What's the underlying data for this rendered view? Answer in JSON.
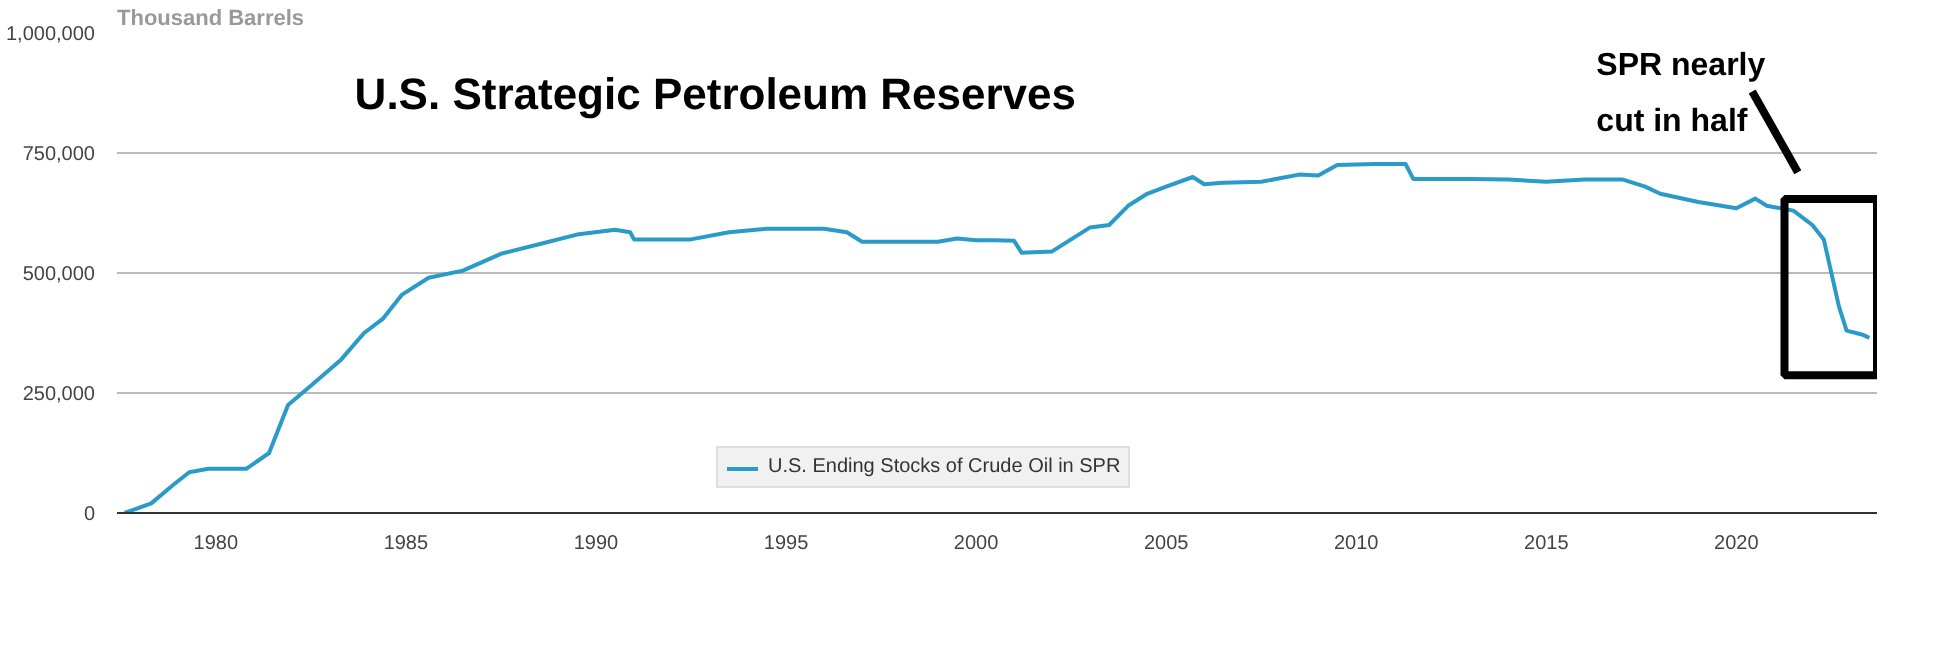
{
  "chart_data": {
    "type": "line",
    "title": "U.S. Strategic Petroleum Reserves",
    "ylabel": "Thousand Barrels",
    "annotations": [
      "SPR nearly cut in half"
    ],
    "xlim": [
      1977.4,
      2023.7
    ],
    "xticks": [
      1980,
      1985,
      1990,
      1995,
      2000,
      2005,
      2010,
      2015,
      2020
    ],
    "ylim": [
      0,
      1000000
    ],
    "yticks": [
      {
        "value": 0,
        "label": "0"
      },
      {
        "value": 250000,
        "label": "250,000"
      },
      {
        "value": 500000,
        "label": "500,000"
      },
      {
        "value": 750000,
        "label": "750,000"
      },
      {
        "value": 1000000,
        "label": "1,000,000"
      }
    ],
    "grid": "y",
    "legend": "bottom",
    "line_style": "solid",
    "series": [
      {
        "name": "U.S. Ending Stocks of Crude Oil in SPR",
        "color": "#2a9bc9",
        "x": [
          1977.6,
          1978.3,
          1978.9,
          1979.3,
          1979.8,
          1980.8,
          1981.4,
          1981.9,
          1982.5,
          1983.3,
          1983.9,
          1984.4,
          1984.9,
          1985.6,
          1986.5,
          1987.5,
          1988.5,
          1989.5,
          1990.5,
          1990.9,
          1991.0,
          1992.5,
          1993.5,
          1994.5,
          1996.0,
          1996.6,
          1997.0,
          1999.0,
          1999.5,
          2000.0,
          2000.5,
          2001.0,
          2001.2,
          2002.0,
          2003.0,
          2003.5,
          2004.0,
          2004.5,
          2005.0,
          2005.7,
          2006.0,
          2006.5,
          2007.5,
          2008.5,
          2009.0,
          2009.5,
          2010.5,
          2011.3,
          2011.5,
          2013.0,
          2014.0,
          2015.0,
          2016.0,
          2017.0,
          2017.6,
          2018.0,
          2019.0,
          2020.0,
          2020.5,
          2020.8,
          2021.5,
          2022.0,
          2022.3,
          2022.7,
          2022.9,
          2023.3,
          2023.5
        ],
        "values": [
          0,
          20000,
          60000,
          85000,
          92000,
          92000,
          125000,
          225000,
          265000,
          320000,
          375000,
          405000,
          455000,
          490000,
          505000,
          540000,
          560000,
          580000,
          590000,
          585000,
          570000,
          570000,
          585000,
          592000,
          592000,
          585000,
          565000,
          565000,
          572000,
          568000,
          568000,
          567000,
          542000,
          545000,
          595000,
          600000,
          640000,
          665000,
          680000,
          700000,
          685000,
          688000,
          690000,
          705000,
          703000,
          725000,
          727000,
          727000,
          696000,
          696000,
          695000,
          690000,
          695000,
          695000,
          680000,
          665000,
          648000,
          635000,
          655000,
          640000,
          630000,
          600000,
          570000,
          430000,
          380000,
          372000,
          365000
        ]
      }
    ]
  }
}
